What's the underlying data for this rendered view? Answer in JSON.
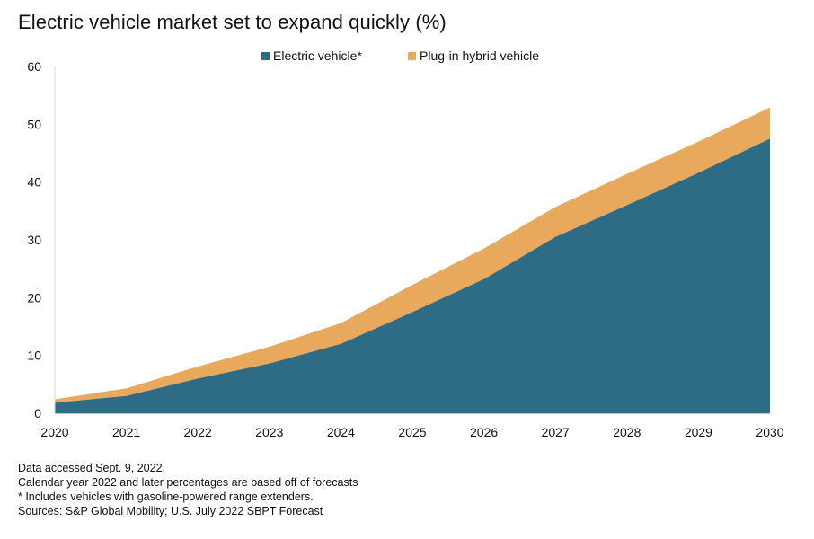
{
  "chart_data": {
    "type": "area",
    "stacked": true,
    "title": "Electric vehicle market set to expand quickly (%)",
    "x": [
      "2020",
      "2021",
      "2022",
      "2023",
      "2024",
      "2025",
      "2026",
      "2027",
      "2028",
      "2029",
      "2030"
    ],
    "series": [
      {
        "name": "Electric vehicle*",
        "color": "#2e6b85",
        "values": [
          1.8,
          3.0,
          6.0,
          8.6,
          12.0,
          17.5,
          23.2,
          30.5,
          36.0,
          41.6,
          47.5
        ]
      },
      {
        "name": "Plug-in hybrid vehicle",
        "color": "#e8a95c",
        "values": [
          0.6,
          1.3,
          2.1,
          2.9,
          3.6,
          4.7,
          5.3,
          5.2,
          5.4,
          5.4,
          5.4
        ]
      }
    ],
    "y_ticks": [
      "0",
      "10",
      "20",
      "30",
      "40",
      "50",
      "60"
    ],
    "ylim": [
      0,
      60
    ],
    "xlabel": "",
    "ylabel": "",
    "grid": false,
    "legend_position": "top-center"
  },
  "footnotes": {
    "line1": "Data accessed Sept. 9, 2022.",
    "line2": "Calendar year 2022 and later percentages are based off of forecasts",
    "line3": "* Includes vehicles with gasoline-powered range extenders.",
    "line4": "Sources: S&P Global Mobility; U.S. July 2022 SBPT Forecast"
  }
}
